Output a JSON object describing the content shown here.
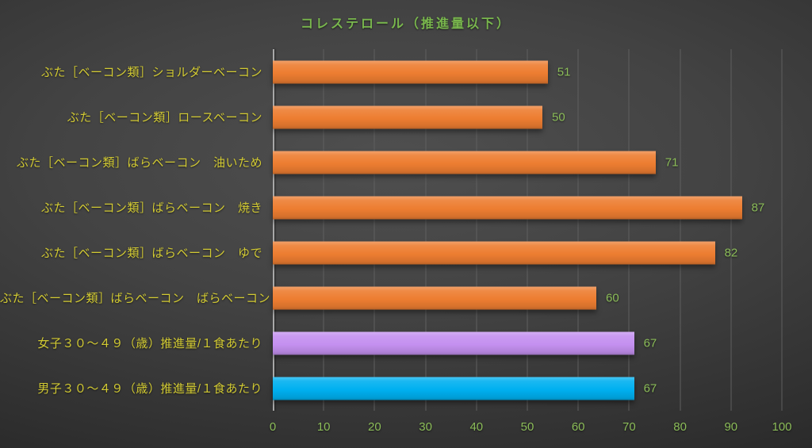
{
  "title": "コレステロール（推進量以下）",
  "colors": {
    "title": "#79b74d",
    "value_label": "#8cbd59",
    "category_label": "#d2ca33",
    "axis": "#a8a8a8",
    "gridline": "#5f5f5f",
    "orange": "#ed7d31",
    "purple": "#c490f0",
    "blue": "#00b0f0"
  },
  "chart_data": {
    "type": "bar",
    "orientation": "horizontal",
    "title": "コレステロール（推進量以下）",
    "categories": [
      "ぶた［ベーコン類］ショルダーベーコン",
      "ぶた［ベーコン類］ロースベーコン",
      "ぶた［ベーコン類］ばらベーコン　油いため",
      "ぶた［ベーコン類］ばらベーコン　焼き",
      "ぶた［ベーコン類］ばらベーコン　ゆで",
      "ぶた［ベーコン類］ばらベーコン　ばらベーコン",
      "女子３０～４９（歳）推進量/１食あたり",
      "男子３０～４９（歳）推進量/１食あたり"
    ],
    "values": [
      51,
      50,
      71,
      87,
      82,
      60,
      67,
      67
    ],
    "bar_colors": [
      "orange",
      "orange",
      "orange",
      "orange",
      "orange",
      "orange",
      "purple",
      "blue"
    ],
    "data_labels": true,
    "xlim": [
      0,
      100
    ],
    "x_ticks": [
      0,
      10,
      20,
      30,
      40,
      50,
      60,
      70,
      80,
      90,
      100
    ],
    "grid": true,
    "legend": false,
    "xlabel": "",
    "ylabel": ""
  }
}
